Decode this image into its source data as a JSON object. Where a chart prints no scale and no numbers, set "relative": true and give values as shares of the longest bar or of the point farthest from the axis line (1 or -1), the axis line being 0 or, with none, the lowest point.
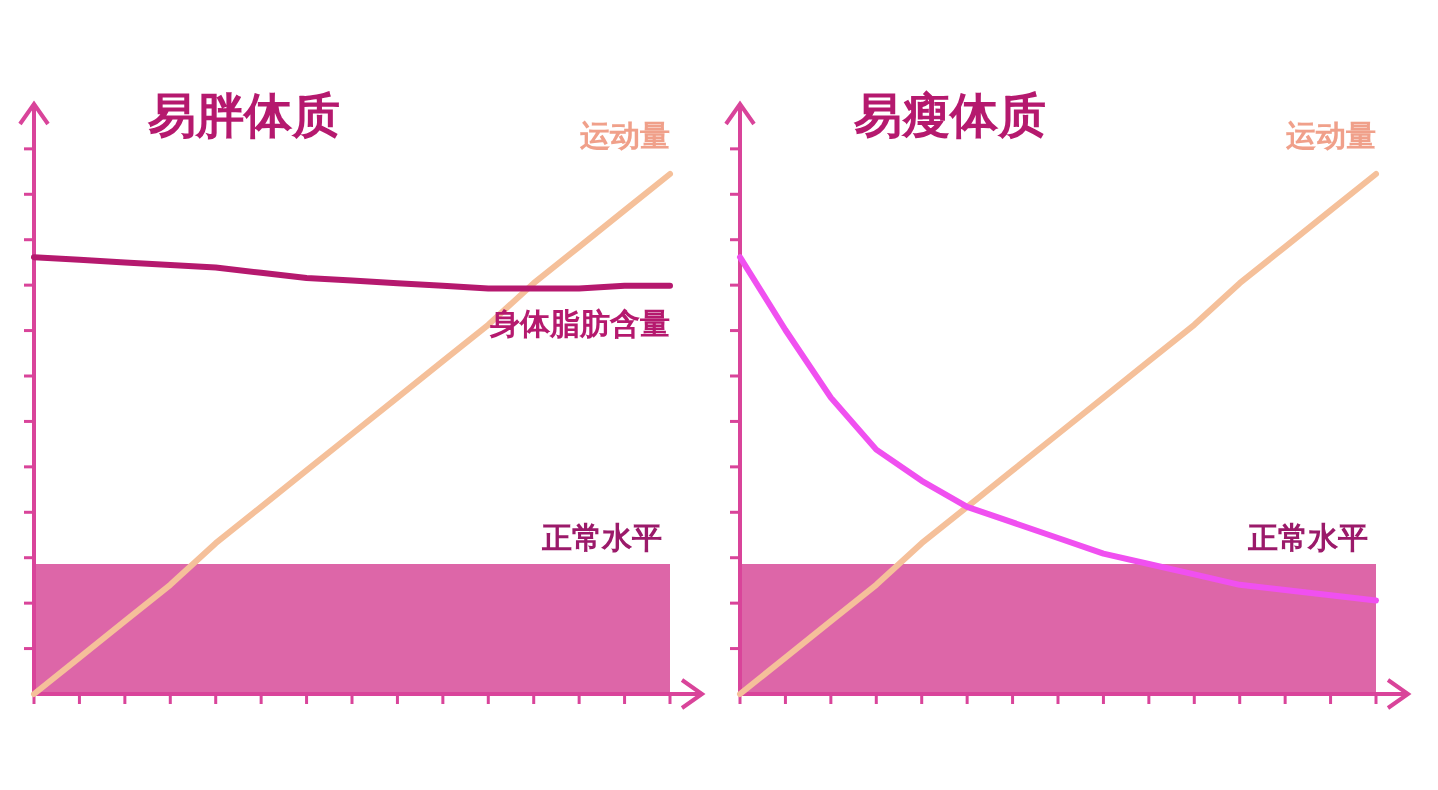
{
  "chart_data": [
    {
      "type": "line",
      "title": "易胖体质",
      "relative": true,
      "legend": false,
      "categories": [
        null,
        null,
        null,
        null,
        null,
        null,
        null,
        null,
        null,
        null,
        null,
        null,
        null,
        null,
        null
      ],
      "series": [
        {
          "name": "运动量",
          "color": "#f5c09a",
          "values": [
            0,
            0.07,
            0.14,
            0.21,
            0.29,
            0.36,
            0.43,
            0.5,
            0.57,
            0.64,
            0.71,
            0.79,
            0.86,
            0.93,
            1
          ]
        },
        {
          "name": "身体脂肪含量",
          "color": "#b5196e",
          "values": [
            0.84,
            0.835,
            0.83,
            0.825,
            0.82,
            0.81,
            0.8,
            0.795,
            0.79,
            0.785,
            0.78,
            0.78,
            0.78,
            0.785,
            0.785
          ]
        }
      ],
      "bands": [
        {
          "axis": "y",
          "from": 0,
          "to": 0.25,
          "label": "正常水平",
          "color": "#d9559f"
        }
      ]
    },
    {
      "type": "line",
      "title": "易瘦体质",
      "relative": true,
      "legend": false,
      "categories": [
        null,
        null,
        null,
        null,
        null,
        null,
        null,
        null,
        null,
        null,
        null,
        null,
        null,
        null,
        null
      ],
      "series": [
        {
          "name": "运动量",
          "color": "#f5c09a",
          "values": [
            0,
            0.07,
            0.14,
            0.21,
            0.29,
            0.36,
            0.43,
            0.5,
            0.57,
            0.64,
            0.71,
            0.79,
            0.86,
            0.93,
            1
          ]
        },
        {
          "color": "#f050f0",
          "values": [
            0.84,
            0.7,
            0.57,
            0.47,
            0.41,
            0.36,
            0.33,
            0.3,
            0.27,
            0.25,
            0.23,
            0.21,
            0.2,
            0.19,
            0.18
          ]
        }
      ],
      "bands": [
        {
          "axis": "y",
          "from": 0,
          "to": 0.25,
          "label": "正常水平",
          "color": "#d9559f"
        }
      ]
    }
  ]
}
